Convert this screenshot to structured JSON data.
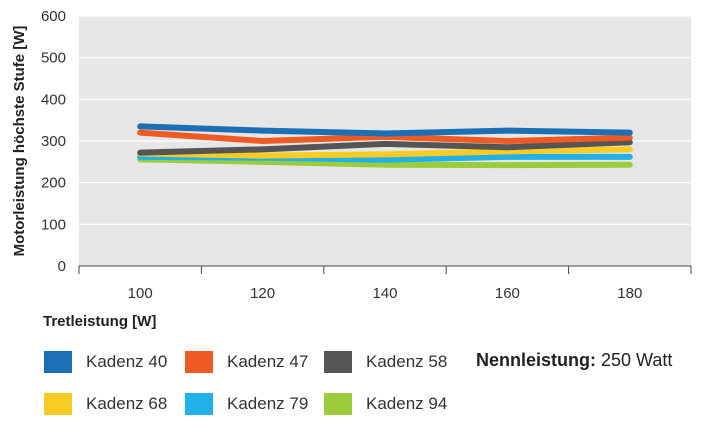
{
  "chart_data": {
    "type": "line",
    "title": "",
    "xlabel": "Tretleistung [W]",
    "ylabel": "Motorleistung höchste Stufe [W]",
    "x": [
      100,
      120,
      140,
      160,
      180
    ],
    "xlim": [
      90,
      190
    ],
    "ylim": [
      0,
      600
    ],
    "yticks": [
      0,
      100,
      200,
      300,
      400,
      500,
      600
    ],
    "grid": true,
    "legend_position": "bottom",
    "series": [
      {
        "name": "Kadenz 40",
        "color": "#1a6fb5",
        "values": [
          335,
          325,
          318,
          325,
          320
        ]
      },
      {
        "name": "Kadenz 47",
        "color": "#ee5a24",
        "values": [
          320,
          300,
          310,
          300,
          308
        ]
      },
      {
        "name": "Kadenz 58",
        "color": "#555555",
        "values": [
          272,
          280,
          293,
          285,
          297
        ]
      },
      {
        "name": "Kadenz 68",
        "color": "#f8cc22",
        "values": [
          270,
          265,
          268,
          275,
          280
        ]
      },
      {
        "name": "Kadenz 79",
        "color": "#22b0e8",
        "values": [
          262,
          260,
          255,
          262,
          262
        ]
      },
      {
        "name": "Kadenz 94",
        "color": "#9ccc3c",
        "values": [
          256,
          250,
          243,
          242,
          243
        ]
      }
    ]
  },
  "nennleistung": {
    "bold": "Nennleistung:",
    "value": " 250 Watt"
  }
}
